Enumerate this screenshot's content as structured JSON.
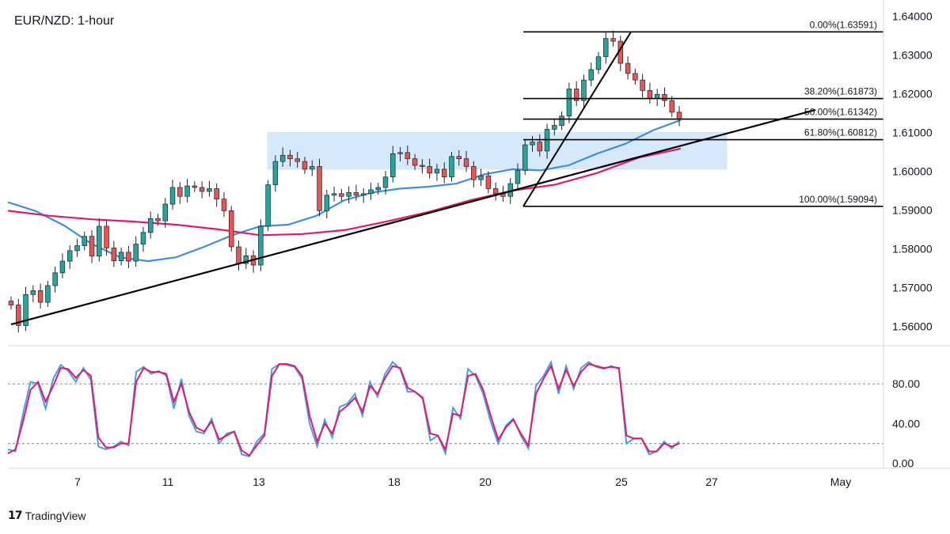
{
  "title": "EUR/NZD: 1-hour",
  "brand": {
    "logo": "17",
    "name": "TradingView"
  },
  "colors": {
    "bull": "#26a69a",
    "bear": "#ef5350",
    "candle_outline": "#1e222d",
    "ma_fast": "#3d8fe0",
    "ma_slow": "#e3196e",
    "stoch_k": "#4a9ee8",
    "stoch_d": "#e3196e",
    "zone": "#d6e9fa",
    "line": "#000000",
    "grid": "#888888"
  },
  "chart_data": [
    {
      "type": "candlestick",
      "symbol": "EUR/NZD",
      "timeframe": "1-hour",
      "ylim": [
        1.555,
        1.6425
      ],
      "y_ticks": [
        "1.64000",
        "1.63000",
        "1.62000",
        "1.61000",
        "1.60000",
        "1.59000",
        "1.58000",
        "1.57000",
        "1.56000"
      ],
      "x_ticks": [
        "7",
        "11",
        "13",
        "18",
        "20",
        "25",
        "27",
        "May"
      ],
      "fibonacci": [
        {
          "label": "0.00%(1.63591)",
          "price": 1.63591
        },
        {
          "label": "38.20%(1.61873)",
          "price": 1.61873
        },
        {
          "label": "50.00%(1.61342)",
          "price": 1.61342
        },
        {
          "label": "61.80%(1.60812)",
          "price": 1.60812
        },
        {
          "label": "100.00%(1.59094)",
          "price": 1.59094
        }
      ],
      "zone": {
        "price_top": 1.61,
        "price_bottom": 1.6005
      },
      "trendline": {
        "start": 1.5605,
        "end": 1.6158
      },
      "ma_fast": [
        1.592,
        1.5897,
        1.586,
        1.5812,
        1.5778,
        1.5768,
        1.5778,
        1.5805,
        1.5835,
        1.5858,
        1.5862,
        1.5885,
        1.5925,
        1.5945,
        1.5955,
        1.596,
        1.5968,
        1.5992,
        1.6005,
        1.6002,
        1.6015,
        1.6045,
        1.607,
        1.6105,
        1.6132
      ],
      "ma_slow": [
        1.5898,
        1.5885,
        1.5876,
        1.587,
        1.5862,
        1.585,
        1.5835,
        1.5838,
        1.5848,
        1.587,
        1.5895,
        1.5925,
        1.595,
        1.5965,
        1.5995,
        1.6035,
        1.6058
      ],
      "candles_close": [
        1.5655,
        1.5602,
        1.5682,
        1.5692,
        1.5662,
        1.5705,
        1.5738,
        1.5768,
        1.5795,
        1.5808,
        1.5832,
        1.5781,
        1.5858,
        1.5802,
        1.5769,
        1.5791,
        1.5768,
        1.5812,
        1.5842,
        1.5878,
        1.5872,
        1.5915,
        1.5958,
        1.5935,
        1.5962,
        1.5958,
        1.5948,
        1.5955,
        1.5928,
        1.5898,
        1.5805,
        1.5762,
        1.5782,
        1.5758,
        1.5858,
        1.5965,
        1.6025,
        1.6041,
        1.6032,
        1.6025,
        1.6005,
        1.6012,
        1.5898,
        1.5938,
        1.5942,
        1.5935,
        1.5945,
        1.5938,
        1.5942,
        1.5952,
        1.5958,
        1.5985,
        1.6045,
        1.6048,
        1.6032,
        1.6015,
        1.6012,
        1.5995,
        1.6005,
        1.5985,
        1.6038,
        1.6032,
        1.6012,
        1.5978,
        1.5988,
        1.5955,
        1.5942,
        1.5935,
        1.5968,
        1.6002,
        1.6068,
        1.6075,
        1.6052,
        1.6108,
        1.6118,
        1.6142,
        1.6212,
        1.6182,
        1.6235,
        1.6262,
        1.6295,
        1.6342,
        1.6335,
        1.6278,
        1.6252,
        1.6235,
        1.6208,
        1.6188,
        1.6198,
        1.6182,
        1.6152,
        1.6134
      ]
    },
    {
      "type": "line",
      "name": "stochastic",
      "ylim": [
        -5,
        112
      ],
      "y_ticks": [
        "80.00",
        "40.00",
        "0.00"
      ],
      "levels": [
        80,
        20
      ],
      "k": [
        14,
        12,
        50,
        82,
        80,
        55,
        85,
        99,
        93,
        82,
        96,
        84,
        17,
        14,
        17,
        22,
        18,
        92,
        97,
        90,
        93,
        88,
        55,
        85,
        48,
        32,
        30,
        45,
        20,
        30,
        32,
        9,
        7,
        22,
        30,
        95,
        100,
        99,
        97,
        85,
        40,
        17,
        44,
        26,
        57,
        60,
        70,
        48,
        82,
        67,
        90,
        102,
        95,
        72,
        72,
        65,
        23,
        28,
        10,
        56,
        45,
        95,
        88,
        70,
        42,
        20,
        38,
        45,
        28,
        15,
        78,
        88,
        102,
        70,
        98,
        75,
        96,
        102,
        97,
        95,
        98,
        95,
        20,
        25,
        25,
        9,
        12,
        22,
        15,
        22
      ],
      "d": [
        10,
        14,
        42,
        74,
        82,
        62,
        78,
        96,
        95,
        86,
        94,
        88,
        26,
        16,
        16,
        20,
        20,
        82,
        96,
        92,
        92,
        90,
        62,
        80,
        52,
        36,
        32,
        42,
        24,
        28,
        32,
        13,
        8,
        18,
        28,
        88,
        100,
        100,
        98,
        88,
        48,
        22,
        40,
        30,
        52,
        58,
        66,
        52,
        78,
        70,
        86,
        98,
        96,
        76,
        72,
        66,
        30,
        28,
        14,
        50,
        48,
        88,
        90,
        74,
        48,
        24,
        36,
        44,
        30,
        18,
        70,
        85,
        98,
        75,
        94,
        78,
        92,
        100,
        98,
        96,
        97,
        96,
        28,
        25,
        25,
        12,
        12,
        20,
        17,
        20
      ]
    }
  ]
}
